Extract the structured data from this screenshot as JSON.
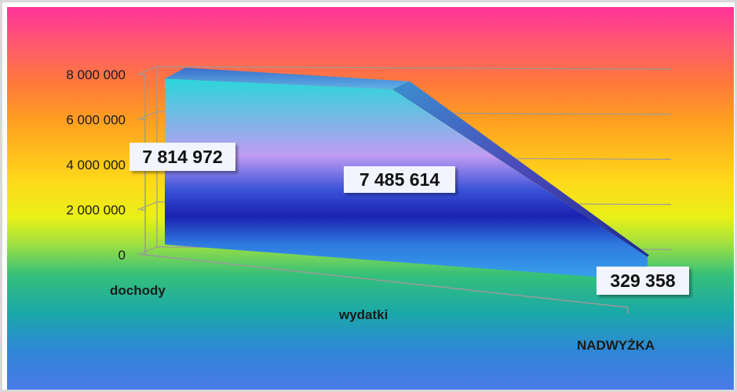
{
  "chart_data": {
    "type": "area",
    "title": "",
    "xlabel": "",
    "ylabel": "",
    "categories": [
      "dochody",
      "wydatki",
      "NADWYŻKA"
    ],
    "values": [
      7814972,
      7485614,
      329358
    ],
    "data_labels": [
      "7 814 972",
      "7 485 614",
      "329 358"
    ],
    "y_ticks": [
      "0",
      "2 000 000",
      "4 000 000",
      "6 000 000",
      "8 000 000"
    ],
    "ylim": [
      0,
      8000000
    ],
    "grid": true,
    "legend": "none",
    "colors": {
      "area_top": "#27d8d8",
      "area_mid": "#b59af0",
      "area_bottom": "#1a2ab8",
      "area_base": "#3aa0e8",
      "label_box": "#f2f4ff"
    }
  }
}
